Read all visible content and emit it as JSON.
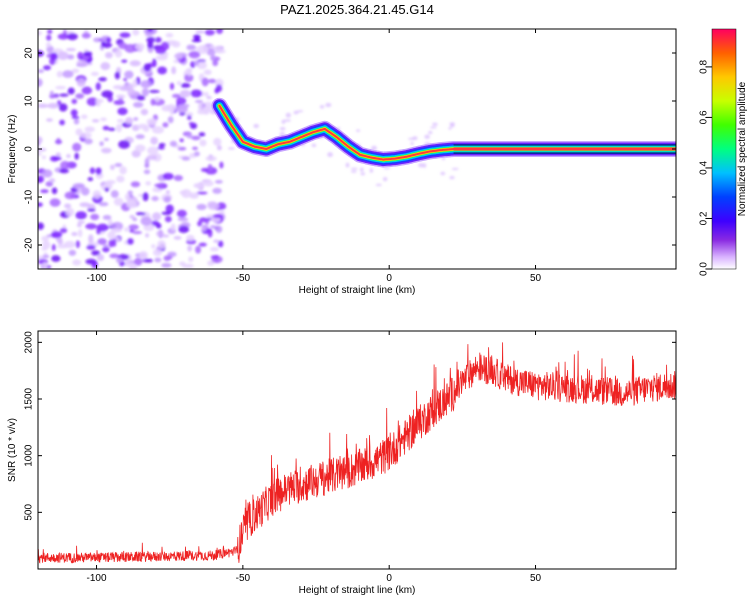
{
  "title": "PAZ1.2025.364.21.45.G14",
  "colors": {
    "snr_line": "#ee2222",
    "track_core": "#ff3b3b",
    "frame": "#000000"
  },
  "chart_data": [
    {
      "type": "heatmap",
      "name": "spectrogram",
      "xlabel": "Height of straight line (km)",
      "ylabel": "Frequency (Hz)",
      "xlim": [
        -120,
        98
      ],
      "ylim": [
        -25,
        25
      ],
      "xticks": [
        -100,
        -50,
        0,
        50
      ],
      "xtick_labels": [
        "-100",
        "-50",
        "0",
        "50"
      ],
      "yticks": [
        -20,
        -10,
        0,
        10,
        20
      ],
      "ytick_labels": [
        "-20",
        "-10",
        "0",
        "10",
        "20"
      ],
      "noise_region_x": [
        -120,
        -57
      ],
      "frequency_track": {
        "x": [
          -58,
          -54,
          -50,
          -46,
          -42,
          -38,
          -34,
          -30,
          -26,
          -22,
          -18,
          -14,
          -10,
          -6,
          -2,
          2,
          6,
          10,
          14,
          18,
          22,
          98
        ],
        "y": [
          9,
          5,
          1.5,
          0.5,
          0,
          1,
          1.5,
          2.5,
          3.5,
          4.2,
          2.5,
          0.5,
          -1.2,
          -1.8,
          -2.2,
          -2,
          -1.6,
          -1,
          -0.5,
          -0.2,
          0,
          0
        ]
      },
      "colorbar": {
        "label": "Normalized spectral amplitude",
        "range": [
          0,
          0.95
        ],
        "ticks": [
          0.0,
          0.2,
          0.4,
          0.6,
          0.8
        ],
        "tick_labels": [
          "0.0",
          "0.2",
          "0.4",
          "0.6",
          "0.8"
        ],
        "colormap": [
          "#ffffff",
          "#cc99ff",
          "#7a1fff",
          "#0000ff",
          "#00c8ff",
          "#00ff70",
          "#b4ff00",
          "#ffd000",
          "#ff7000",
          "#ff0050"
        ]
      }
    },
    {
      "type": "line",
      "name": "snr",
      "xlabel": "Height of straight line (km)",
      "ylabel": "SNR (10 * v/v)",
      "xlim": [
        -120,
        98
      ],
      "ylim": [
        0,
        2100
      ],
      "xticks": [
        -100,
        -50,
        0,
        50
      ],
      "xtick_labels": [
        "-100",
        "-50",
        "0",
        "50"
      ],
      "yticks": [
        500,
        1000,
        1500,
        2000
      ],
      "ytick_labels": [
        "500",
        "1000",
        "1500",
        "2000"
      ],
      "trend": {
        "x": [
          -120,
          -100,
          -80,
          -60,
          -52,
          -50,
          -47,
          -44,
          -40,
          -35,
          -30,
          -25,
          -20,
          -15,
          -10,
          -5,
          0,
          5,
          10,
          15,
          20,
          25,
          30,
          35,
          40,
          50,
          60,
          70,
          80,
          90,
          98
        ],
        "y": [
          100,
          100,
          110,
          120,
          160,
          320,
          450,
          520,
          620,
          700,
          740,
          780,
          820,
          850,
          900,
          950,
          1020,
          1150,
          1280,
          1400,
          1500,
          1650,
          1780,
          1750,
          1680,
          1620,
          1600,
          1580,
          1550,
          1600,
          1620
        ]
      }
    }
  ]
}
